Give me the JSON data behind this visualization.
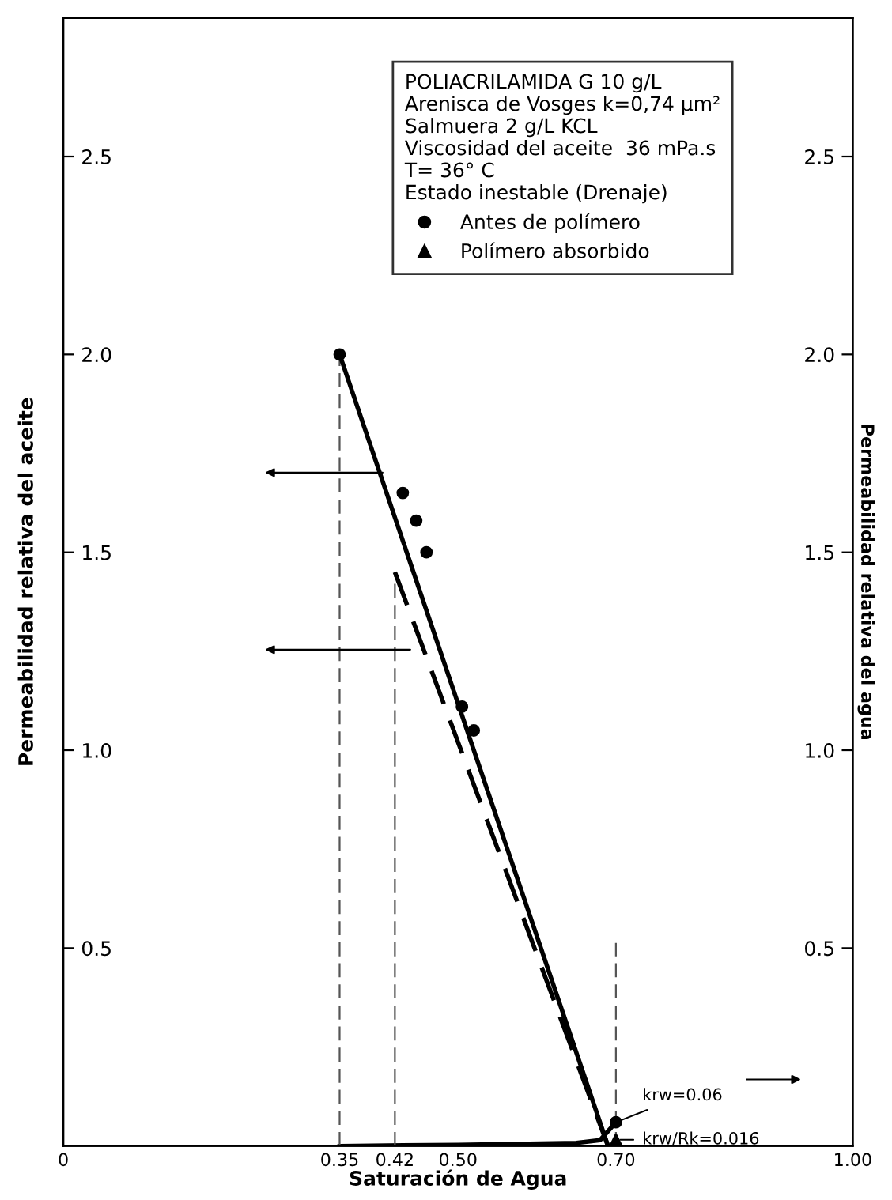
{
  "chart_data": {
    "type": "line",
    "xlabel": "Saturación de Agua",
    "ylabel": "Permeabilidad relativa del aceite",
    "y2label": "Permeabilidad relativa del agua",
    "legend_title": "POLIACRILAMIDA G 10 g/L\nArenisca de Vosges k=0,74 µm²\nSalmuera 2 g/L KCL\nViscosidad del aceite  36 mPa.s\nT= 36° C\nEstado inestable (Drenaje)",
    "annotations": [
      {
        "text": "krw=0.06",
        "x": 0.7,
        "y": 0.06
      },
      {
        "text": "krw/Rk=0.016",
        "x": 0.7,
        "y": 0.016
      }
    ],
    "xlim": [
      0,
      1.0
    ],
    "xticks": [
      0,
      {
        "value": 0.35,
        "label": "0.35"
      },
      {
        "value": 0.42,
        "label": "0.42"
      },
      {
        "value": 0.5,
        "label": "0.50"
      },
      {
        "value": 0.7,
        "label": "0.70"
      },
      {
        "value": 1.0,
        "label": "1.00"
      }
    ],
    "ylim": [
      0,
      2.85
    ],
    "yticks": [
      0.5,
      {
        "value": 1.0,
        "label": "1.0"
      },
      1.5,
      {
        "value": 2.0,
        "label": "2.0"
      },
      2.5
    ],
    "y2lim": [
      0,
      2.85
    ],
    "y2ticks": [
      0.5,
      {
        "value": 1.0,
        "label": "1.0"
      },
      1.5,
      {
        "value": 2.0,
        "label": "2.0"
      },
      2.5
    ],
    "ref_lines": [
      {
        "axis": "x",
        "value": 0.35,
        "line_style": "dashed",
        "color": "#555555"
      },
      {
        "axis": "x",
        "value": 0.42,
        "line_style": "dashed",
        "color": "#555555"
      },
      {
        "axis": "x",
        "value": 0.7,
        "line_style": "dashed",
        "color": "#555555"
      }
    ],
    "legend": "top right",
    "grid": false,
    "series": [
      {
        "color": "#000000",
        "line_style": "solid",
        "marker": "none",
        "x": [
          0.35,
          0.69
        ],
        "values": [
          2.0,
          0
        ]
      },
      {
        "color": "#000000",
        "line_style": "dashed",
        "marker": "none",
        "x": [
          0.42,
          0.69
        ],
        "values": [
          1.45,
          0
        ]
      },
      {
        "type": "scatter",
        "name": "Antes de polímero",
        "color": "#000000",
        "marker": "circle",
        "x": [
          0.35,
          0.43,
          0.447,
          0.46,
          0.505,
          0.52,
          0.7
        ],
        "values": [
          2.0,
          1.65,
          1.58,
          1.5,
          1.11,
          1.05,
          0.06
        ]
      },
      {
        "type": "scatter",
        "name": "Polímero absorbido",
        "color": "#000000",
        "marker": "triangle",
        "x": [
          0.7
        ],
        "values": [
          0.016
        ]
      },
      {
        "axis": "y2",
        "color": "#000000",
        "line_style": "solid",
        "marker": "none",
        "x": [
          0.35,
          0.5,
          0.65,
          0.68,
          0.7
        ],
        "values": [
          0,
          0.003,
          0.008,
          0.015,
          0.06
        ]
      }
    ]
  }
}
